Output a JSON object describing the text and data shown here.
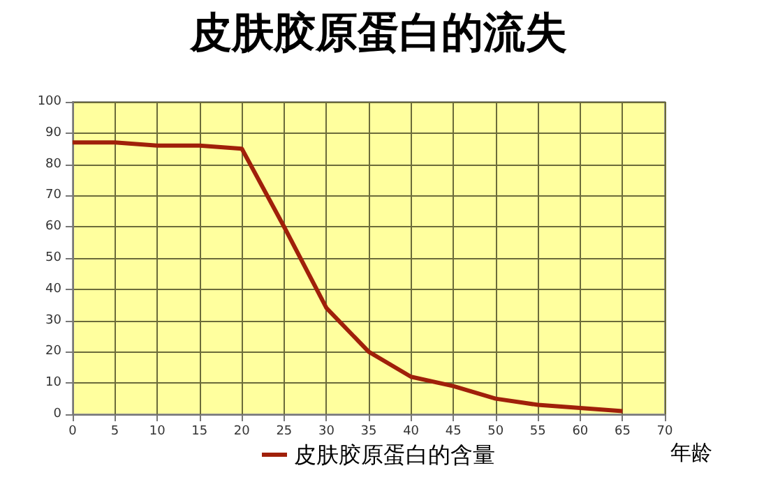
{
  "chart_data": {
    "type": "line",
    "title": "皮肤胶原蛋白的流失",
    "xlabel": "年龄",
    "x": [
      0,
      5,
      10,
      15,
      20,
      25,
      30,
      35,
      40,
      45,
      50,
      55,
      60,
      65
    ],
    "series": [
      {
        "name": "皮肤胶原蛋白的含量",
        "color": "#a0200a",
        "values": [
          87,
          87,
          86,
          86,
          85,
          60,
          34,
          20,
          12,
          9,
          5,
          3,
          2,
          1
        ]
      }
    ],
    "xlim": [
      0,
      70
    ],
    "xticks": [
      0,
      5,
      10,
      15,
      20,
      25,
      30,
      35,
      40,
      45,
      50,
      55,
      60,
      65,
      70
    ],
    "ylim": [
      0,
      100
    ],
    "yticks": [
      0,
      10,
      20,
      30,
      40,
      50,
      60,
      70,
      80,
      90,
      100
    ],
    "grid": true,
    "legend": "bottom",
    "marker": "none",
    "line_style": "solid"
  }
}
